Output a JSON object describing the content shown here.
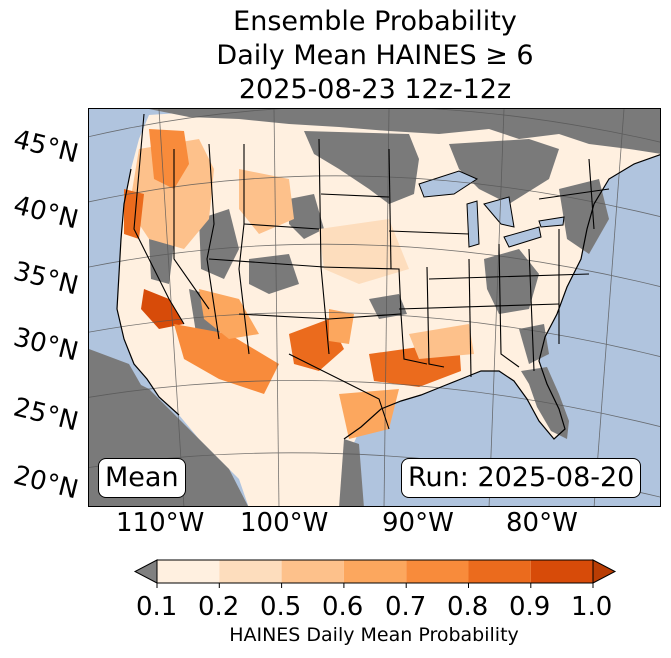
{
  "title": {
    "line1": "Ensemble Probability",
    "line2": "Daily Mean HAINES ≥ 6",
    "line3": "2025-08-23 12z-12z"
  },
  "labels": {
    "mean": "Mean",
    "run": "Run: 2025-08-20"
  },
  "lat_labels": [
    "45°N",
    "40°N",
    "35°N",
    "30°N",
    "25°N",
    "20°N"
  ],
  "lon_labels": [
    "110°W",
    "100°W",
    "90°W",
    "80°W"
  ],
  "colorbar": {
    "ticks": [
      "0.1",
      "0.2",
      "0.5",
      "0.6",
      "0.7",
      "0.8",
      "0.9",
      "1.0"
    ],
    "colors": [
      "#fff0e0",
      "#fdddbd",
      "#fdc18b",
      "#fca75e",
      "#f88b3b",
      "#eb6b1d",
      "#d74b09"
    ],
    "under_color": "#808080",
    "over_color": "#b93d04",
    "title": "HAINES Daily Mean Probability"
  },
  "map_colors": {
    "ocean": "#b0c4de",
    "nodata": "#7a7a7a"
  }
}
